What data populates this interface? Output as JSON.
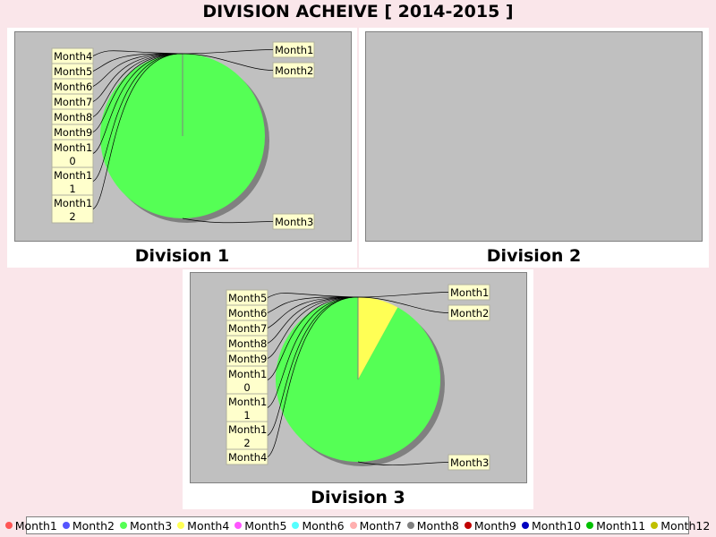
{
  "title": "DIVISION ACHEIVE [ 2014-2015 ]",
  "legend": [
    {
      "name": "Month1",
      "color": "#ff5555"
    },
    {
      "name": "Month2",
      "color": "#5555ff"
    },
    {
      "name": "Month3",
      "color": "#55ff55"
    },
    {
      "name": "Month4",
      "color": "#ffff55"
    },
    {
      "name": "Month5",
      "color": "#ff55ff"
    },
    {
      "name": "Month6",
      "color": "#55ffff"
    },
    {
      "name": "Month7",
      "color": "#ffafaf"
    },
    {
      "name": "Month8",
      "color": "#808080"
    },
    {
      "name": "Month9",
      "color": "#c00000"
    },
    {
      "name": "Month10",
      "color": "#0000c0"
    },
    {
      "name": "Month11",
      "color": "#00c000"
    },
    {
      "name": "Month12",
      "color": "#c0c000"
    }
  ],
  "chart_data": [
    {
      "type": "pie",
      "title": "Division 1",
      "categories": [
        "Month1",
        "Month2",
        "Month3",
        "Month4",
        "Month5",
        "Month6",
        "Month7",
        "Month8",
        "Month9",
        "Month10",
        "Month11",
        "Month12"
      ],
      "values": [
        0,
        0,
        100,
        0,
        0,
        0,
        0,
        0,
        0,
        0,
        0,
        0
      ],
      "labels_left": [
        "Month4",
        "Month5",
        "Month6",
        "Month7",
        "Month8",
        "Month9",
        "Month10",
        "Month11",
        "Month12"
      ],
      "labels_right": [
        "Month1",
        "Month2",
        "Month3"
      ]
    },
    {
      "type": "pie",
      "title": "Division 2",
      "categories": [],
      "values": []
    },
    {
      "type": "pie",
      "title": "Division 3",
      "categories": [
        "Month1",
        "Month2",
        "Month3",
        "Month4",
        "Month5",
        "Month6",
        "Month7",
        "Month8",
        "Month9",
        "Month10",
        "Month11",
        "Month12"
      ],
      "values": [
        0,
        0,
        92,
        8,
        0,
        0,
        0,
        0,
        0,
        0,
        0,
        0
      ],
      "labels_left": [
        "Month5",
        "Month6",
        "Month7",
        "Month8",
        "Month9",
        "Month10",
        "Month11",
        "Month12",
        "Month4"
      ],
      "labels_right": [
        "Month1",
        "Month2",
        "Month3"
      ]
    }
  ]
}
